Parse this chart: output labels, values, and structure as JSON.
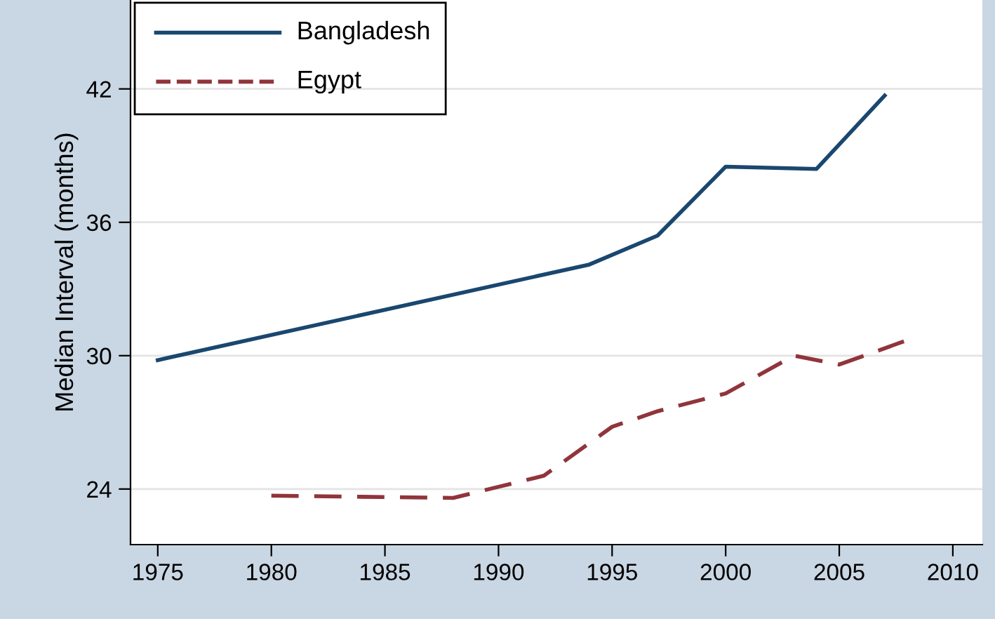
{
  "chart_data": {
    "type": "line",
    "ylabel": "Median Interval (months)",
    "xlim": [
      1973.8,
      2011.3
    ],
    "ylim": [
      21.5,
      46
    ],
    "xticks": [
      1975,
      1980,
      1985,
      1990,
      1995,
      2000,
      2005,
      2010
    ],
    "yticks": [
      24,
      30,
      36,
      42
    ],
    "grid": "y",
    "legend": "top left",
    "series": [
      {
        "name": "Bangladesh",
        "color": "#1a476f",
        "line_style": "solid",
        "x": [
          1975,
          1994,
          1997,
          2000,
          2004,
          2007
        ],
        "values": [
          29.8,
          34.1,
          35.4,
          38.5,
          38.4,
          41.7
        ]
      },
      {
        "name": "Egypt",
        "color": "#90353b",
        "line_style": "dashed",
        "x": [
          1980,
          1984,
          1988,
          1990,
          1992,
          1995,
          1997,
          2000,
          2003,
          2005,
          2008
        ],
        "values": [
          23.7,
          23.65,
          23.6,
          24.1,
          24.6,
          26.8,
          27.5,
          28.3,
          30.0,
          29.6,
          30.7
        ]
      }
    ]
  }
}
